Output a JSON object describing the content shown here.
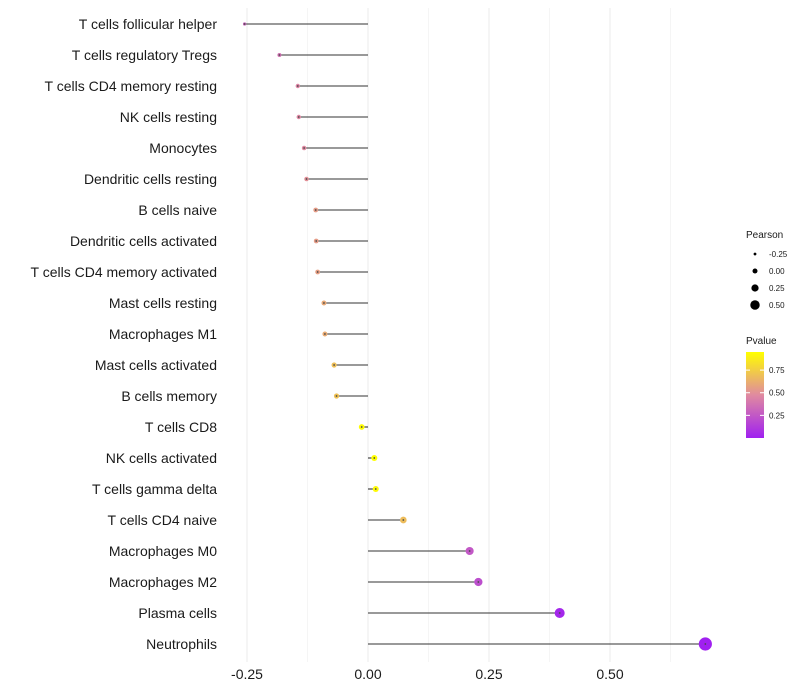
{
  "chart_data": {
    "type": "lollipop",
    "title": "",
    "xlabel": "",
    "ylabel": "",
    "xlim": [
      -0.26,
      0.72
    ],
    "x_ticks": [
      -0.25,
      0.0,
      0.25,
      0.5
    ],
    "x_tick_labels": [
      "-0.25",
      "0.00",
      "0.25",
      "0.50"
    ],
    "grid": true,
    "baseline": 0,
    "points": [
      {
        "label": "T cells follicular helper",
        "pearson": -0.255,
        "pvalue": 0.3
      },
      {
        "label": "T cells regulatory  Tregs",
        "pearson": -0.183,
        "pvalue": 0.36
      },
      {
        "label": "T cells CD4 memory resting",
        "pearson": -0.145,
        "pvalue": 0.45
      },
      {
        "label": "NK cells resting",
        "pearson": -0.143,
        "pvalue": 0.46
      },
      {
        "label": "Monocytes",
        "pearson": -0.132,
        "pvalue": 0.47
      },
      {
        "label": "Dendritic cells resting",
        "pearson": -0.127,
        "pvalue": 0.5
      },
      {
        "label": "B cells naive",
        "pearson": -0.108,
        "pvalue": 0.55
      },
      {
        "label": "Dendritic cells activated",
        "pearson": -0.107,
        "pvalue": 0.55
      },
      {
        "label": "T cells CD4 memory activated",
        "pearson": -0.104,
        "pvalue": 0.56
      },
      {
        "label": "Mast cells resting",
        "pearson": -0.091,
        "pvalue": 0.6
      },
      {
        "label": "Macrophages M1",
        "pearson": -0.089,
        "pvalue": 0.61
      },
      {
        "label": "Mast cells activated",
        "pearson": -0.07,
        "pvalue": 0.69
      },
      {
        "label": "B cells memory",
        "pearson": -0.065,
        "pvalue": 0.7
      },
      {
        "label": "T cells CD8",
        "pearson": -0.013,
        "pvalue": 0.94
      },
      {
        "label": "NK cells activated",
        "pearson": 0.013,
        "pvalue": 0.95
      },
      {
        "label": "T cells gamma delta",
        "pearson": 0.016,
        "pvalue": 0.93
      },
      {
        "label": "T cells CD4 naive",
        "pearson": 0.073,
        "pvalue": 0.68
      },
      {
        "label": "Macrophages M0",
        "pearson": 0.21,
        "pvalue": 0.25
      },
      {
        "label": "Macrophages M2",
        "pearson": 0.228,
        "pvalue": 0.21
      },
      {
        "label": "Plasma cells",
        "pearson": 0.396,
        "pvalue": 0.03
      },
      {
        "label": "Neutrophils",
        "pearson": 0.697,
        "pvalue": 0.0001
      }
    ],
    "legend_size": {
      "title": "Pearson",
      "breaks": [
        -0.25,
        0.0,
        0.25,
        0.5
      ],
      "labels": [
        "-0.25",
        "0.00",
        "0.25",
        "0.50"
      ]
    },
    "legend_color": {
      "title": "Pvalue",
      "range": [
        0,
        0.95
      ],
      "breaks": [
        0.25,
        0.5,
        0.75
      ],
      "labels": [
        "0.25",
        "0.50",
        "0.75"
      ],
      "low_color": "#a020f0",
      "high_color": "#ffff00"
    },
    "colors": {
      "stem": "#333333",
      "grid": "#ebebeb",
      "center_dot": "#4a4a4a"
    }
  }
}
